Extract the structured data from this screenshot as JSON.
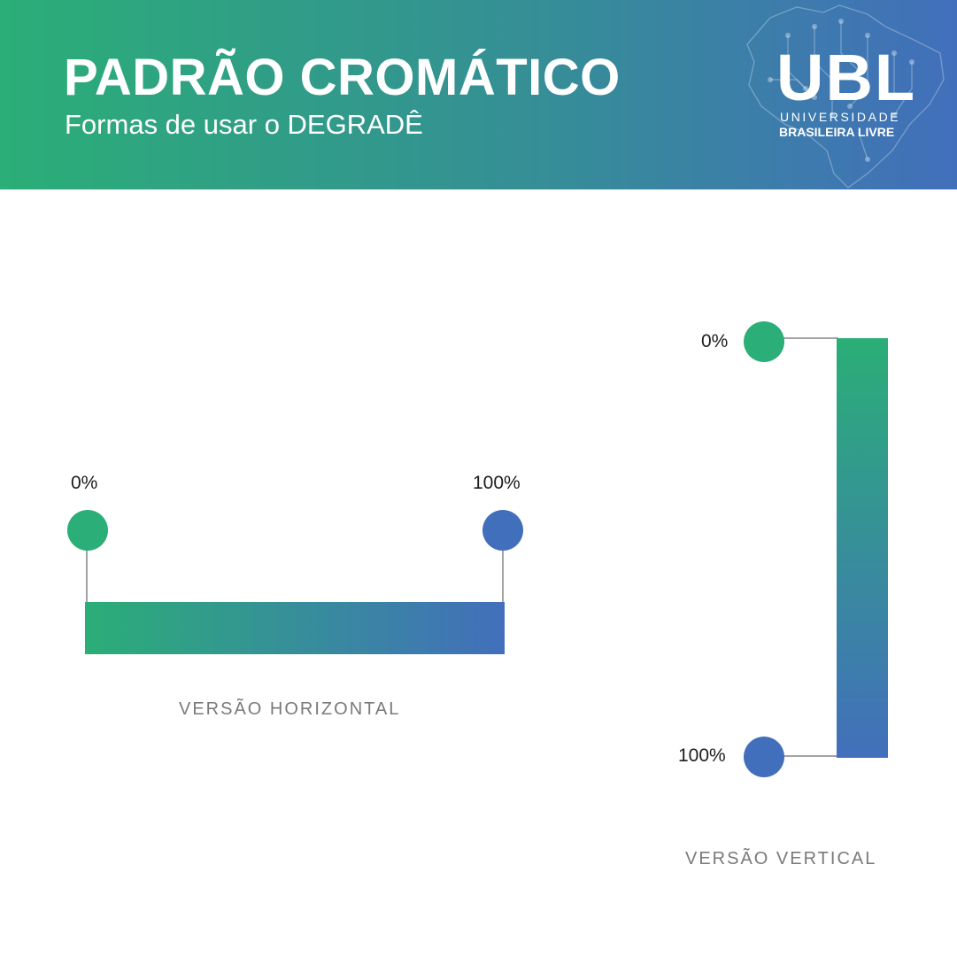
{
  "header": {
    "title": "PADRÃO CROMÁTICO",
    "subtitle": "Formas de usar o DEGRADÊ"
  },
  "logo": {
    "main": "UBL",
    "line1": "UNIVERSIDADE",
    "line2": "BRASILEIRA LIVRE"
  },
  "colors": {
    "start": "#2bae77",
    "end": "#426fbb",
    "connector": "#a3a3a3"
  },
  "horizontal": {
    "start_label": "0%",
    "end_label": "100%",
    "caption": "VERSÃO HORIZONTAL"
  },
  "vertical": {
    "start_label": "0%",
    "end_label": "100%",
    "caption": "VERSÃO VERTICAL"
  }
}
